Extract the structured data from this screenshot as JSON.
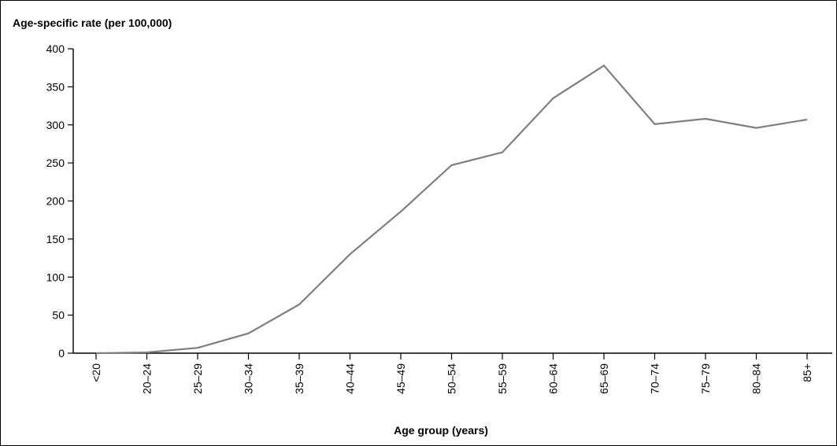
{
  "chart_data": {
    "type": "line",
    "title": "",
    "ylabel": "Age-specific rate (per 100,000)",
    "xlabel": "Age group (years)",
    "categories": [
      "<20",
      "20–24",
      "25–29",
      "30–34",
      "35–39",
      "40–44",
      "45–49",
      "50–54",
      "55–59",
      "60–64",
      "65–69",
      "70–74",
      "75–79",
      "80–84",
      "85+"
    ],
    "series": [
      {
        "values": [
          0,
          1,
          7,
          26,
          64,
          130,
          186,
          247,
          264,
          335,
          378,
          301,
          308,
          296,
          307
        ]
      }
    ],
    "ylim": [
      0,
      400
    ],
    "yticks": [
      "0",
      "50",
      "100",
      "150",
      "200",
      "250",
      "300",
      "350",
      "400"
    ],
    "grid": false,
    "legend": "none",
    "colors": {
      "line": "#7f7f7f",
      "axis": "#000000"
    }
  }
}
